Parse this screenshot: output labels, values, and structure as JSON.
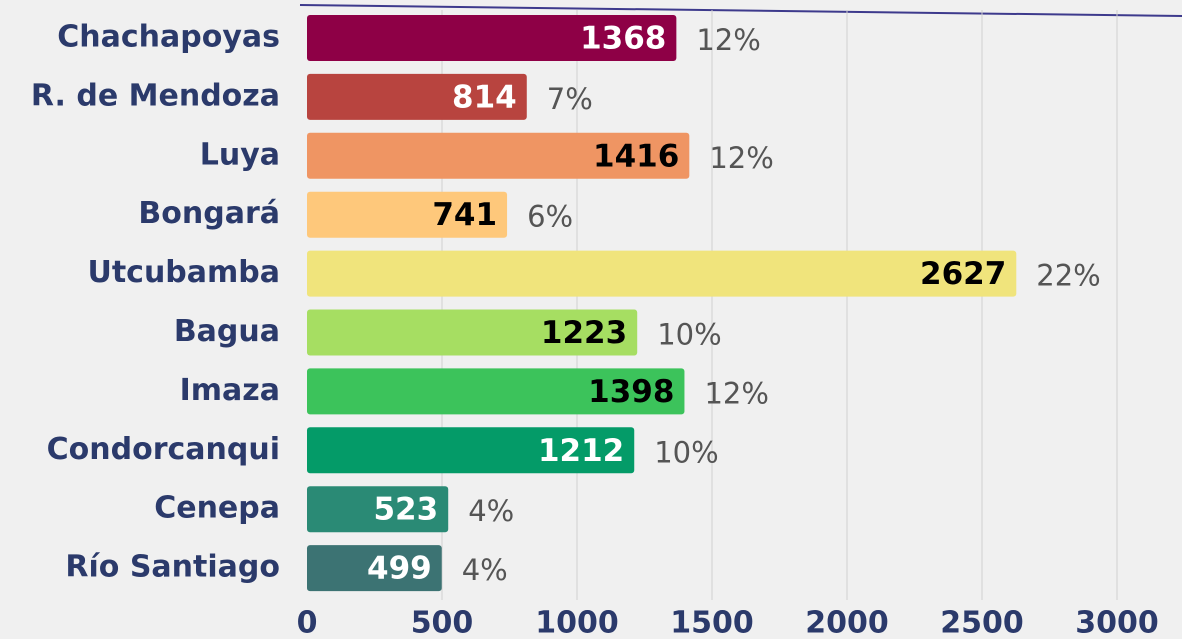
{
  "chart_data": {
    "type": "barh",
    "categories": [
      "Chachapoyas",
      "R. de Mendoza",
      "Luya",
      "Bongará",
      "Utcubamba",
      "Bagua",
      "Imaza",
      "Condorcanqui",
      "Cenepa",
      "Río Santiago"
    ],
    "values": [
      1368,
      814,
      1416,
      741,
      2627,
      1223,
      1398,
      1212,
      523,
      499
    ],
    "colors": [
      "#8e0046",
      "#b8443f",
      "#ef9563",
      "#fec87b",
      "#f0e47c",
      "#a6de62",
      "#3cc35b",
      "#049b68",
      "#2a8a75",
      "#3c7373"
    ],
    "label_colors": [
      "#ffffff",
      "#ffffff",
      "#000000",
      "#000000",
      "#000000",
      "#000000",
      "#000000",
      "#ffffff",
      "#ffffff",
      "#ffffff"
    ],
    "percent_labels": [
      "12%",
      "7%",
      "12%",
      "6%",
      "22%",
      "10%",
      "12%",
      "10%",
      "4%",
      "4%"
    ],
    "xlim": [
      0,
      3000
    ],
    "xticks": [
      0,
      500,
      1000,
      1500,
      2000,
      2500,
      3000
    ],
    "grid": true
  }
}
